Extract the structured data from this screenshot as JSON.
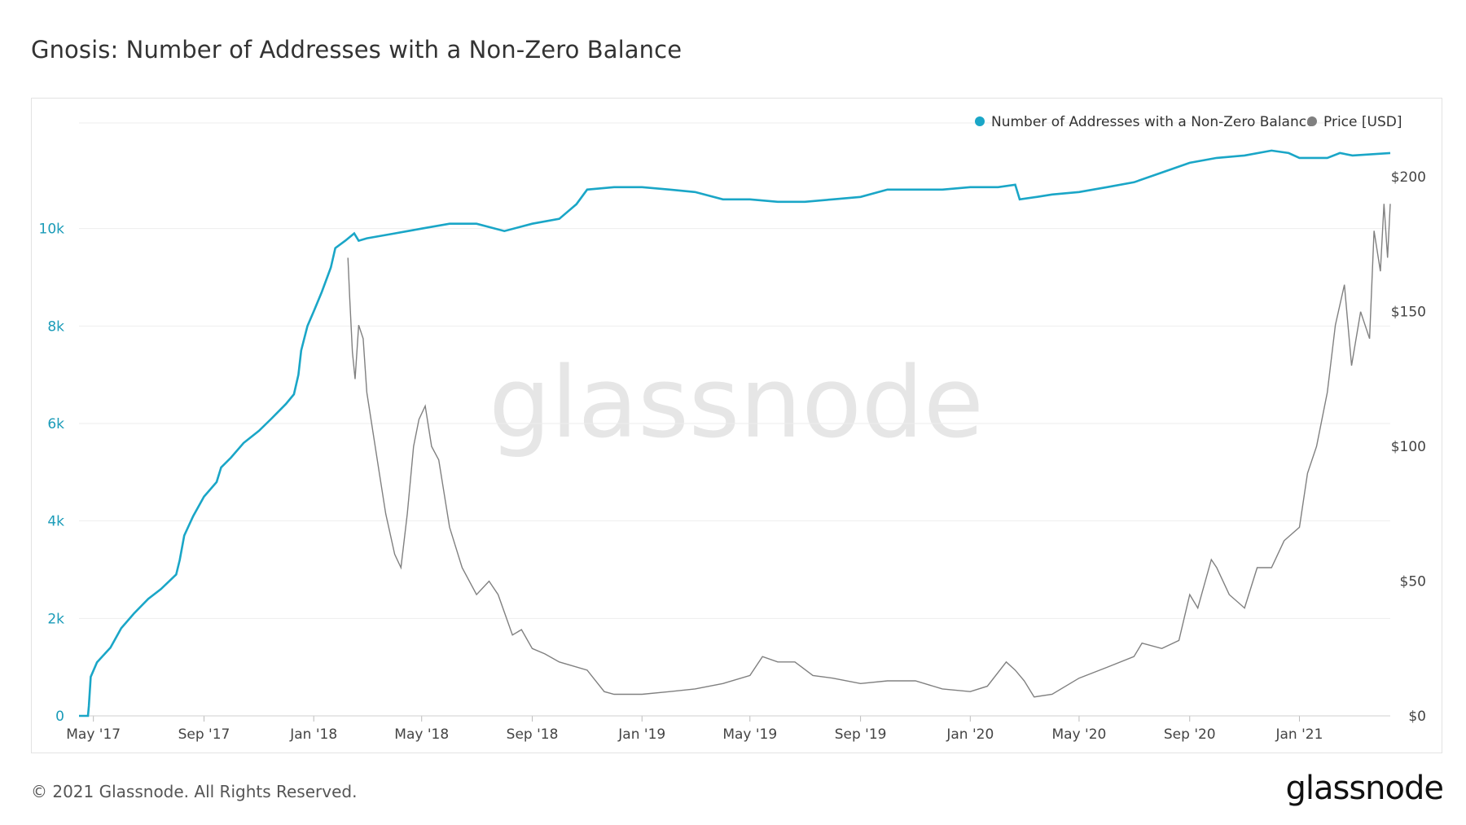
{
  "page": {
    "title": "Gnosis: Number of Addresses with a Non-Zero Balance",
    "copyright": "© 2021 Glassnode. All Rights Reserved.",
    "logo_text": "glassnode",
    "watermark": "glassnode"
  },
  "colors": {
    "addresses": "#1aa6c7",
    "price": "#808080",
    "left_axis_text": "#1a9bb8",
    "grid": "#eeeeee",
    "watermark": "#e6e6e6"
  },
  "chart_data": {
    "type": "line",
    "title": "Gnosis: Number of Addresses with a Non-Zero Balance",
    "legend": [
      {
        "name": "Number of Addresses with a Non-Zero Balance",
        "color": "#1aa6c7"
      },
      {
        "name": "Price [USD]",
        "color": "#808080"
      }
    ],
    "legend_position": "top-right",
    "x_range": [
      "2017-04-15",
      "2021-04-12"
    ],
    "x_ticks": [
      {
        "label": "May '17",
        "date": "2017-05-01"
      },
      {
        "label": "Sep '17",
        "date": "2017-09-01"
      },
      {
        "label": "Jan '18",
        "date": "2018-01-01"
      },
      {
        "label": "May '18",
        "date": "2018-05-01"
      },
      {
        "label": "Sep '18",
        "date": "2018-09-01"
      },
      {
        "label": "Jan '19",
        "date": "2019-01-01"
      },
      {
        "label": "May '19",
        "date": "2019-05-01"
      },
      {
        "label": "Sep '19",
        "date": "2019-09-01"
      },
      {
        "label": "Jan '20",
        "date": "2020-01-01"
      },
      {
        "label": "May '20",
        "date": "2020-05-01"
      },
      {
        "label": "Sep '20",
        "date": "2020-09-01"
      },
      {
        "label": "Jan '21",
        "date": "2021-01-01"
      }
    ],
    "y_left": {
      "range": [
        0,
        12000
      ],
      "ticks": [
        {
          "value": 0,
          "label": "0"
        },
        {
          "value": 2000,
          "label": "2k"
        },
        {
          "value": 4000,
          "label": "4k"
        },
        {
          "value": 6000,
          "label": "6k"
        },
        {
          "value": 8000,
          "label": "8k"
        },
        {
          "value": 10000,
          "label": "10k"
        }
      ]
    },
    "y_right": {
      "range": [
        0,
        217
      ],
      "ticks": [
        {
          "value": 0,
          "label": "$0"
        },
        {
          "value": 50,
          "label": "$50"
        },
        {
          "value": 100,
          "label": "$100"
        },
        {
          "value": 150,
          "label": "$150"
        },
        {
          "value": 200,
          "label": "$200"
        }
      ]
    },
    "grid": true,
    "series": [
      {
        "name": "Number of Addresses with a Non-Zero Balance",
        "axis": "left",
        "points": [
          [
            "2017-04-15",
            0
          ],
          [
            "2017-04-25",
            0
          ],
          [
            "2017-04-26",
            200
          ],
          [
            "2017-04-28",
            800
          ],
          [
            "2017-05-05",
            1100
          ],
          [
            "2017-05-20",
            1400
          ],
          [
            "2017-06-01",
            1800
          ],
          [
            "2017-06-15",
            2100
          ],
          [
            "2017-07-01",
            2400
          ],
          [
            "2017-07-15",
            2600
          ],
          [
            "2017-08-01",
            2900
          ],
          [
            "2017-08-05",
            3200
          ],
          [
            "2017-08-10",
            3700
          ],
          [
            "2017-08-20",
            4100
          ],
          [
            "2017-09-01",
            4500
          ],
          [
            "2017-09-15",
            4800
          ],
          [
            "2017-09-20",
            5100
          ],
          [
            "2017-10-01",
            5300
          ],
          [
            "2017-10-15",
            5600
          ],
          [
            "2017-11-01",
            5850
          ],
          [
            "2017-11-15",
            6100
          ],
          [
            "2017-12-01",
            6400
          ],
          [
            "2017-12-10",
            6600
          ],
          [
            "2017-12-15",
            7000
          ],
          [
            "2017-12-18",
            7500
          ],
          [
            "2017-12-25",
            8000
          ],
          [
            "2018-01-01",
            8300
          ],
          [
            "2018-01-10",
            8700
          ],
          [
            "2018-01-20",
            9200
          ],
          [
            "2018-01-25",
            9600
          ],
          [
            "2018-02-05",
            9750
          ],
          [
            "2018-02-15",
            9900
          ],
          [
            "2018-02-20",
            9750
          ],
          [
            "2018-03-01",
            9800
          ],
          [
            "2018-04-01",
            9900
          ],
          [
            "2018-05-01",
            10000
          ],
          [
            "2018-06-01",
            10100
          ],
          [
            "2018-07-01",
            10100
          ],
          [
            "2018-08-01",
            9950
          ],
          [
            "2018-09-01",
            10100
          ],
          [
            "2018-10-01",
            10200
          ],
          [
            "2018-10-20",
            10500
          ],
          [
            "2018-11-01",
            10800
          ],
          [
            "2018-12-01",
            10850
          ],
          [
            "2019-01-01",
            10850
          ],
          [
            "2019-02-01",
            10800
          ],
          [
            "2019-03-01",
            10750
          ],
          [
            "2019-04-01",
            10600
          ],
          [
            "2019-05-01",
            10600
          ],
          [
            "2019-06-01",
            10550
          ],
          [
            "2019-07-01",
            10550
          ],
          [
            "2019-08-01",
            10600
          ],
          [
            "2019-09-01",
            10650
          ],
          [
            "2019-10-01",
            10800
          ],
          [
            "2019-11-01",
            10800
          ],
          [
            "2019-12-01",
            10800
          ],
          [
            "2020-01-01",
            10850
          ],
          [
            "2020-02-01",
            10850
          ],
          [
            "2020-02-20",
            10900
          ],
          [
            "2020-02-25",
            10600
          ],
          [
            "2020-03-15",
            10650
          ],
          [
            "2020-04-01",
            10700
          ],
          [
            "2020-05-01",
            10750
          ],
          [
            "2020-06-01",
            10850
          ],
          [
            "2020-07-01",
            10950
          ],
          [
            "2020-08-01",
            11150
          ],
          [
            "2020-09-01",
            11350
          ],
          [
            "2020-10-01",
            11450
          ],
          [
            "2020-11-01",
            11500
          ],
          [
            "2020-12-01",
            11600
          ],
          [
            "2020-12-20",
            11550
          ],
          [
            "2021-01-01",
            11450
          ],
          [
            "2021-02-01",
            11450
          ],
          [
            "2021-02-15",
            11550
          ],
          [
            "2021-03-01",
            11500
          ],
          [
            "2021-04-12",
            11550
          ]
        ]
      },
      {
        "name": "Price [USD]",
        "axis": "right",
        "points": [
          [
            "2018-02-08",
            170
          ],
          [
            "2018-02-10",
            155
          ],
          [
            "2018-02-13",
            135
          ],
          [
            "2018-02-16",
            125
          ],
          [
            "2018-02-20",
            145
          ],
          [
            "2018-02-25",
            140
          ],
          [
            "2018-03-01",
            120
          ],
          [
            "2018-03-08",
            105
          ],
          [
            "2018-03-15",
            90
          ],
          [
            "2018-03-22",
            75
          ],
          [
            "2018-04-01",
            60
          ],
          [
            "2018-04-08",
            55
          ],
          [
            "2018-04-15",
            75
          ],
          [
            "2018-04-22",
            100
          ],
          [
            "2018-04-28",
            110
          ],
          [
            "2018-05-05",
            115
          ],
          [
            "2018-05-12",
            100
          ],
          [
            "2018-05-20",
            95
          ],
          [
            "2018-06-01",
            70
          ],
          [
            "2018-06-15",
            55
          ],
          [
            "2018-07-01",
            45
          ],
          [
            "2018-07-15",
            50
          ],
          [
            "2018-07-25",
            45
          ],
          [
            "2018-08-10",
            30
          ],
          [
            "2018-08-20",
            32
          ],
          [
            "2018-09-01",
            25
          ],
          [
            "2018-09-15",
            23
          ],
          [
            "2018-10-01",
            20
          ],
          [
            "2018-11-01",
            17
          ],
          [
            "2018-11-20",
            9
          ],
          [
            "2018-12-01",
            8
          ],
          [
            "2019-01-01",
            8
          ],
          [
            "2019-02-01",
            9
          ],
          [
            "2019-03-01",
            10
          ],
          [
            "2019-04-01",
            12
          ],
          [
            "2019-05-01",
            15
          ],
          [
            "2019-05-15",
            22
          ],
          [
            "2019-06-01",
            20
          ],
          [
            "2019-06-20",
            20
          ],
          [
            "2019-07-10",
            15
          ],
          [
            "2019-08-01",
            14
          ],
          [
            "2019-09-01",
            12
          ],
          [
            "2019-10-01",
            13
          ],
          [
            "2019-11-01",
            13
          ],
          [
            "2019-12-01",
            10
          ],
          [
            "2020-01-01",
            9
          ],
          [
            "2020-01-20",
            11
          ],
          [
            "2020-02-10",
            20
          ],
          [
            "2020-02-20",
            17
          ],
          [
            "2020-03-01",
            13
          ],
          [
            "2020-03-12",
            7
          ],
          [
            "2020-04-01",
            8
          ],
          [
            "2020-05-01",
            14
          ],
          [
            "2020-06-01",
            18
          ],
          [
            "2020-07-01",
            22
          ],
          [
            "2020-07-10",
            27
          ],
          [
            "2020-08-01",
            25
          ],
          [
            "2020-08-20",
            28
          ],
          [
            "2020-09-01",
            45
          ],
          [
            "2020-09-10",
            40
          ],
          [
            "2020-09-25",
            58
          ],
          [
            "2020-10-01",
            55
          ],
          [
            "2020-10-15",
            45
          ],
          [
            "2020-11-01",
            40
          ],
          [
            "2020-11-15",
            55
          ],
          [
            "2020-12-01",
            55
          ],
          [
            "2020-12-15",
            65
          ],
          [
            "2021-01-01",
            70
          ],
          [
            "2021-01-10",
            90
          ],
          [
            "2021-01-20",
            100
          ],
          [
            "2021-02-01",
            120
          ],
          [
            "2021-02-10",
            145
          ],
          [
            "2021-02-20",
            160
          ],
          [
            "2021-02-28",
            130
          ],
          [
            "2021-03-10",
            150
          ],
          [
            "2021-03-20",
            140
          ],
          [
            "2021-03-25",
            180
          ],
          [
            "2021-04-01",
            165
          ],
          [
            "2021-04-05",
            190
          ],
          [
            "2021-04-09",
            170
          ],
          [
            "2021-04-12",
            190
          ]
        ]
      }
    ]
  }
}
